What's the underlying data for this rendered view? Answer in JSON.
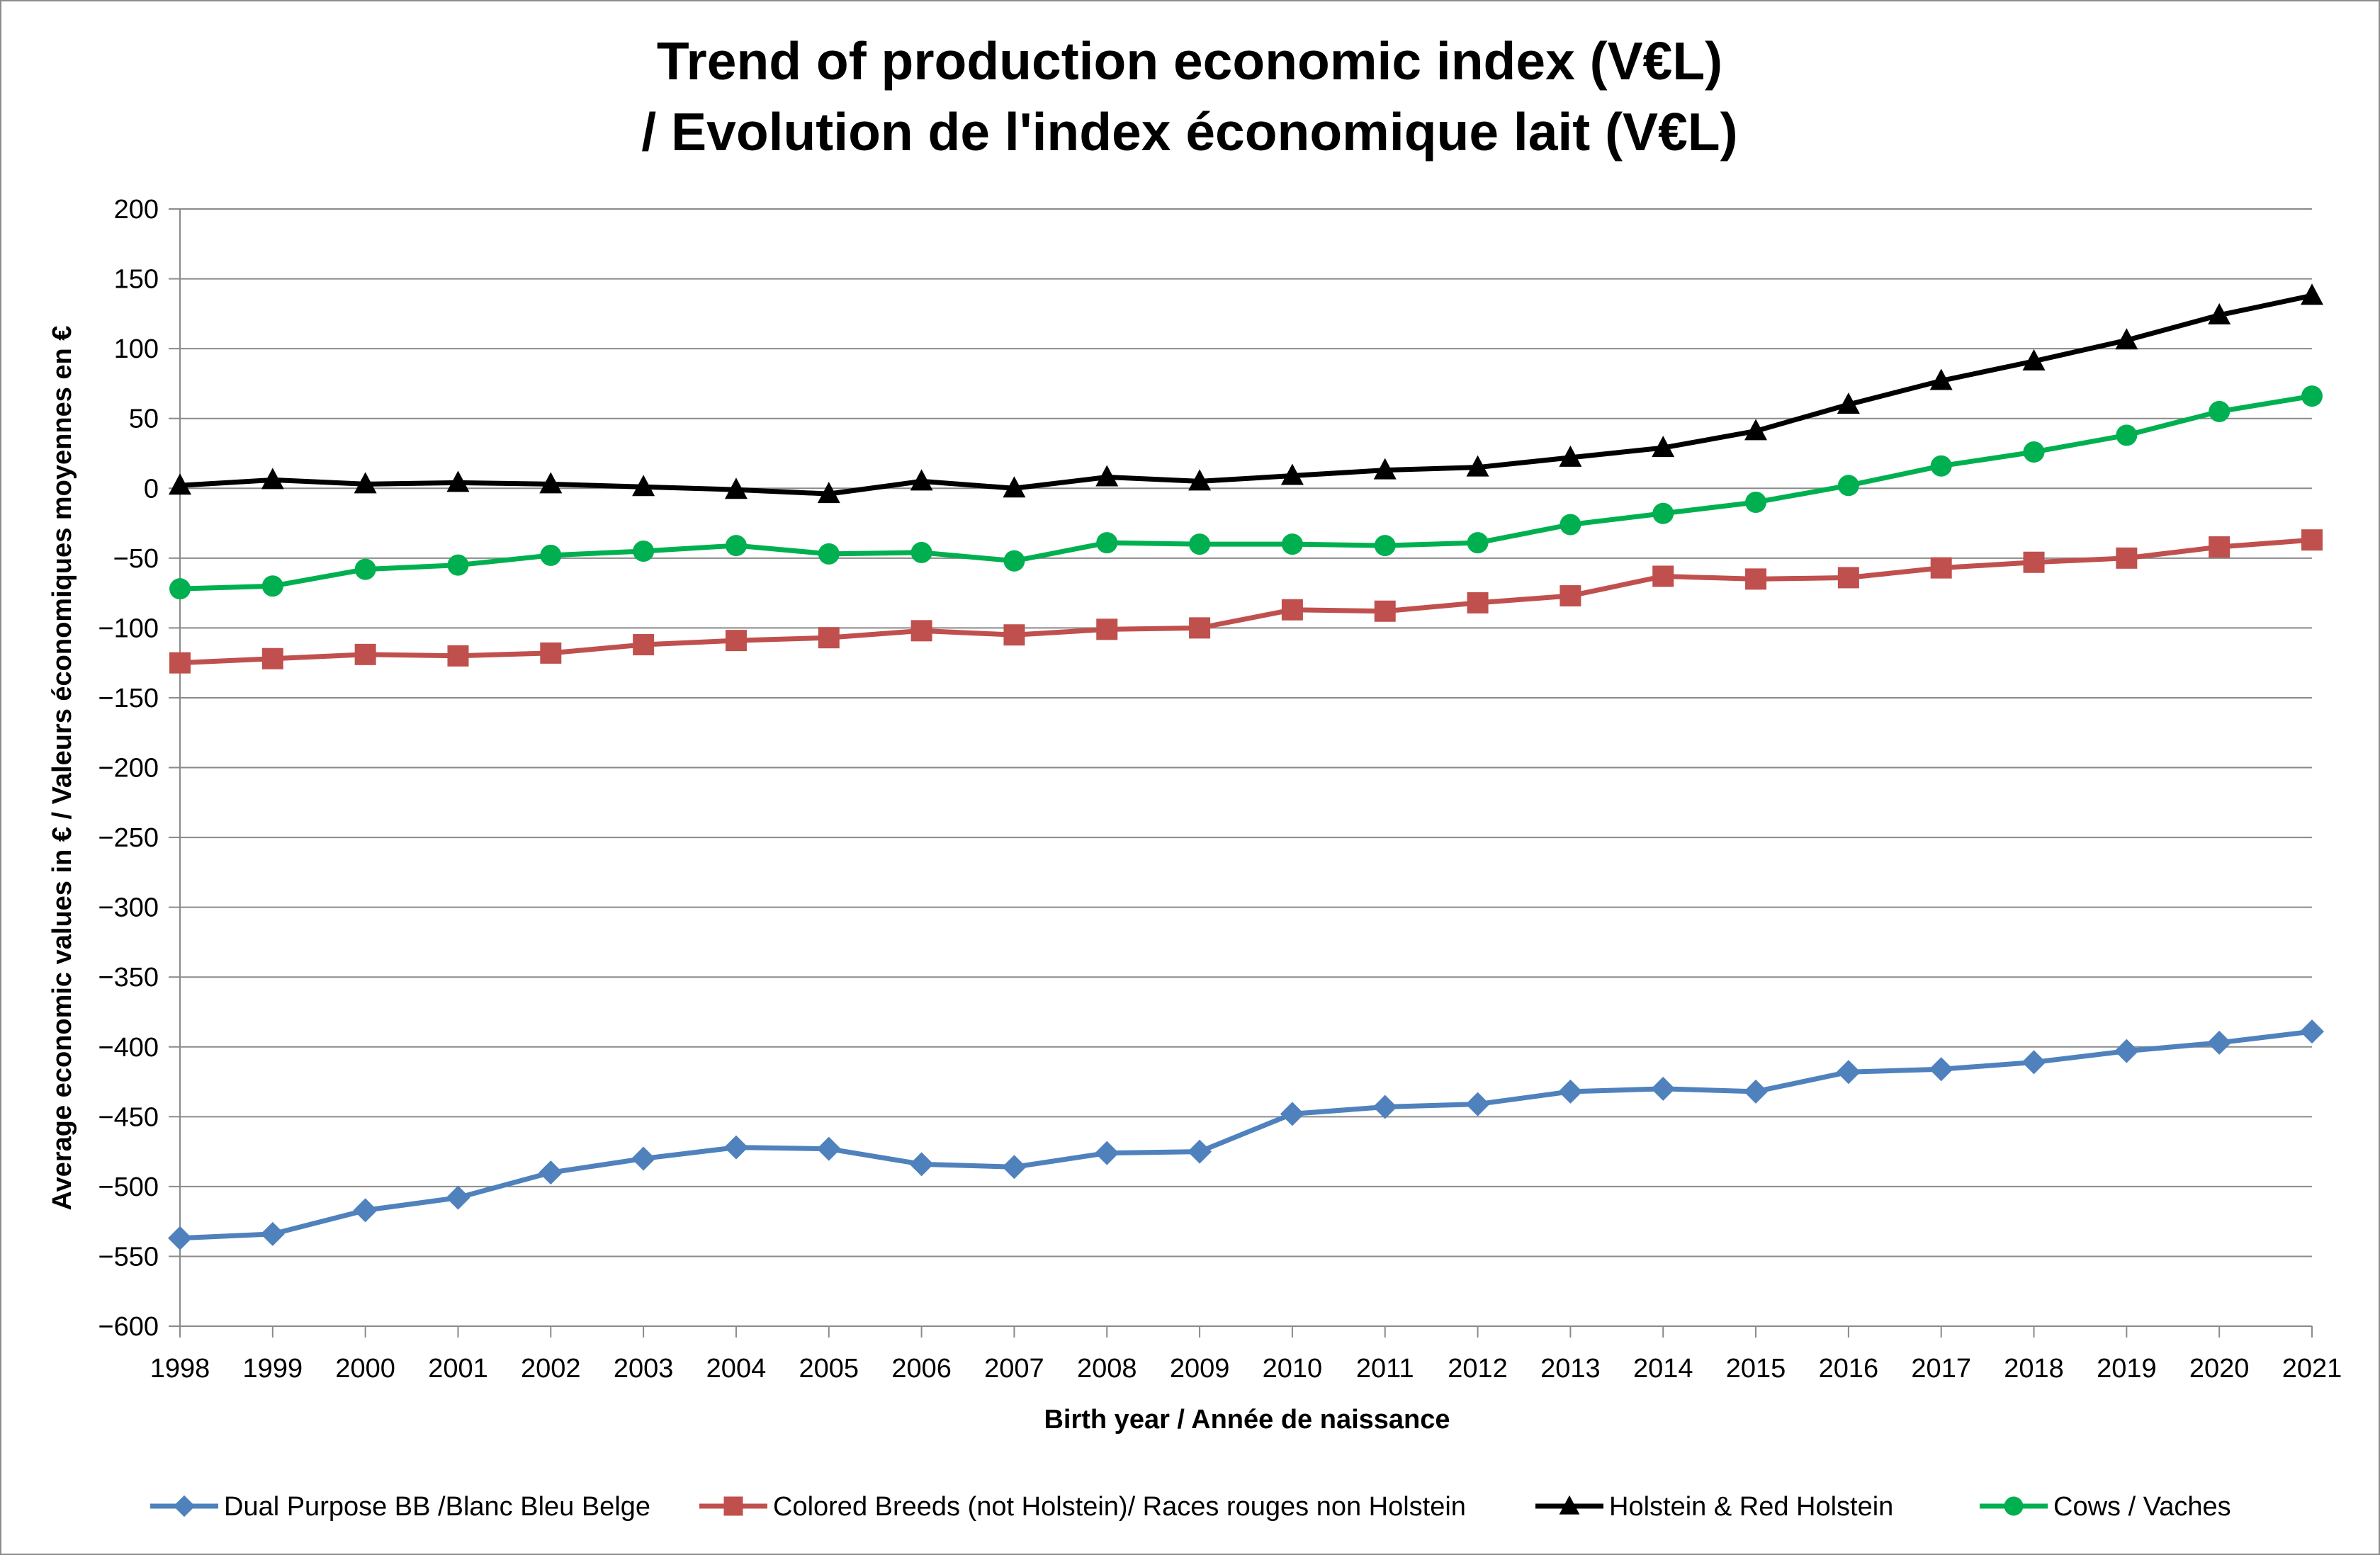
{
  "chart_data": {
    "type": "line",
    "title": "Trend of production economic index (V€L)",
    "subtitle": "/ Evolution de l'index économique lait (V€L)",
    "xlabel": "Birth year / Année de naissance",
    "ylabel": "Average economic values in € / Valeurs économiques moyennes en €",
    "ylim": [
      -600,
      200
    ],
    "ystep": 50,
    "grid": true,
    "legend_position": "bottom",
    "categories": [
      "1998",
      "1999",
      "2000",
      "2001",
      "2002",
      "2003",
      "2004",
      "2005",
      "2006",
      "2007",
      "2008",
      "2009",
      "2010",
      "2011",
      "2012",
      "2013",
      "2014",
      "2015",
      "2016",
      "2017",
      "2018",
      "2019",
      "2020",
      "2021"
    ],
    "series": [
      {
        "name": "Dual Purpose BB /Blanc Bleu Belge",
        "color": "#4f81bd",
        "marker": "diamond",
        "values": [
          -537,
          -534,
          -517,
          -508,
          -490,
          -480,
          -472,
          -473,
          -484,
          -486,
          -476,
          -475,
          -448,
          -443,
          -441,
          -432,
          -430,
          -432,
          -418,
          -416,
          -411,
          -403,
          -397,
          -389
        ]
      },
      {
        "name": "Colored Breeds (not Holstein)/ Races rouges non Holstein",
        "color": "#c0504d",
        "marker": "square",
        "values": [
          -125,
          -122,
          -119,
          -120,
          -118,
          -112,
          -109,
          -107,
          -102,
          -105,
          -101,
          -100,
          -87,
          -88,
          -82,
          -77,
          -63,
          -65,
          -64,
          -57,
          -53,
          -50,
          -42,
          -37
        ]
      },
      {
        "name": "Holstein & Red Holstein",
        "color": "#000000",
        "marker": "triangle",
        "values": [
          2,
          6,
          3,
          4,
          3,
          1,
          -1,
          -4,
          5,
          0,
          8,
          5,
          9,
          13,
          15,
          22,
          29,
          41,
          60,
          77,
          91,
          106,
          124,
          138
        ]
      },
      {
        "name": "Cows / Vaches",
        "color": "#00b050",
        "marker": "circle",
        "values": [
          -72,
          -70,
          -58,
          -55,
          -48,
          -45,
          -41,
          -47,
          -46,
          -52,
          -39,
          -40,
          -40,
          -41,
          -39,
          -26,
          -18,
          -10,
          2,
          16,
          26,
          38,
          55,
          66
        ]
      }
    ]
  }
}
